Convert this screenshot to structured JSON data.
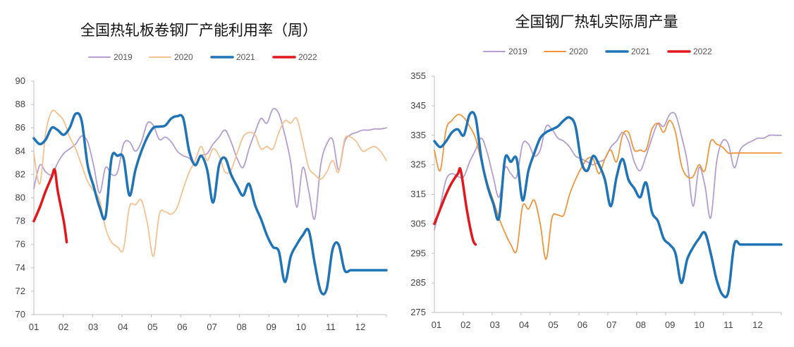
{
  "charts": [
    {
      "title": "全国热轧板卷钢厂产能利用率（周）",
      "legend": [
        {
          "label": "2019",
          "color": "#b39dd1",
          "width": 2
        },
        {
          "label": "2020",
          "color": "#f6c08f",
          "width": 2
        },
        {
          "label": "2021",
          "color": "#1f73b7",
          "width": 3.5
        },
        {
          "label": "2022",
          "color": "#e3161c",
          "width": 3.5
        }
      ],
      "x_ticks": [
        "01",
        "02",
        "03",
        "04",
        "05",
        "06",
        "07",
        "08",
        "09",
        "10",
        "11",
        "12"
      ],
      "y_ticks": [
        "70",
        "72",
        "74",
        "76",
        "78",
        "80",
        "82",
        "84",
        "86",
        "88",
        "90"
      ]
    },
    {
      "title": "全国钢厂热轧实际周产量",
      "legend": [
        {
          "label": "2019",
          "color": "#b39dd1",
          "width": 2
        },
        {
          "label": "2020",
          "color": "#f0953c",
          "width": 2
        },
        {
          "label": "2021",
          "color": "#1f73b7",
          "width": 3.5
        },
        {
          "label": "2022",
          "color": "#e3161c",
          "width": 3.5
        }
      ],
      "x_ticks": [
        "01",
        "02",
        "03",
        "04",
        "05",
        "06",
        "07",
        "08",
        "09",
        "10",
        "11",
        "12"
      ],
      "y_ticks": [
        "275",
        "285",
        "295",
        "305",
        "315",
        "325",
        "335",
        "345",
        "355"
      ]
    }
  ],
  "chart_data": [
    {
      "type": "line",
      "title": "全国热轧板卷钢厂产能利用率（周）",
      "xlabel": "",
      "ylabel": "",
      "xlim": [
        1,
        12.8
      ],
      "ylim": [
        70,
        90
      ],
      "grid": false,
      "legend_position": "top",
      "series": [
        {
          "name": "2019",
          "color": "#b39dd1",
          "x": [
            1.0,
            1.2,
            1.4,
            1.6,
            1.8,
            2.0,
            2.2,
            2.4,
            2.6,
            2.8,
            3.0,
            3.2,
            3.4,
            3.6,
            3.8,
            4.0,
            4.2,
            4.4,
            4.6,
            4.8,
            5.0,
            5.2,
            5.4,
            5.6,
            5.8,
            6.0,
            6.2,
            6.4,
            6.6,
            6.8,
            7.0,
            7.2,
            7.4,
            7.6,
            7.8,
            8.0,
            8.2,
            8.4,
            8.6,
            8.8,
            9.0,
            9.2,
            9.4,
            9.6,
            9.8,
            10.0,
            10.2,
            10.4,
            10.6,
            10.8,
            11.0,
            11.2,
            11.4,
            11.6,
            11.8,
            12.0,
            12.2,
            12.4,
            12.6,
            12.8
          ],
          "values": [
            80.8,
            82.8,
            82.2,
            82.0,
            83.0,
            83.8,
            84.2,
            84.6,
            85.3,
            84.8,
            82.8,
            80.4,
            82.6,
            82.0,
            82.2,
            84.6,
            84.8,
            84.0,
            84.8,
            86.4,
            86.2,
            85.0,
            85.2,
            84.8,
            84.0,
            83.6,
            83.4,
            82.8,
            83.6,
            83.8,
            84.6,
            85.2,
            85.8,
            84.8,
            83.4,
            82.6,
            84.2,
            85.6,
            86.8,
            86.4,
            87.6,
            87.2,
            85.4,
            83.0,
            79.2,
            82.6,
            80.6,
            78.2,
            82.8,
            84.6,
            85.0,
            82.4,
            84.8,
            85.4,
            85.6,
            85.8,
            85.8,
            85.9,
            85.9,
            86.0
          ]
        },
        {
          "name": "2020",
          "color": "#f6c08f",
          "x": [
            1.0,
            1.2,
            1.4,
            1.6,
            1.8,
            2.0,
            2.2,
            2.4,
            2.6,
            2.8,
            3.0,
            3.2,
            3.4,
            3.6,
            3.8,
            4.0,
            4.2,
            4.4,
            4.6,
            4.8,
            5.0,
            5.2,
            5.4,
            5.6,
            5.8,
            6.0,
            6.2,
            6.4,
            6.6,
            6.8,
            7.0,
            7.2,
            7.4,
            7.6,
            7.8,
            8.0,
            8.2,
            8.4,
            8.6,
            8.8,
            9.0,
            9.2,
            9.4,
            9.6,
            9.8,
            10.0,
            10.2,
            10.4,
            10.6,
            10.8,
            11.0,
            11.2,
            11.4,
            11.6,
            11.8,
            12.0,
            12.2,
            12.4,
            12.6,
            12.8
          ],
          "values": [
            83.8,
            81.2,
            85.6,
            87.4,
            87.2,
            86.6,
            85.2,
            84.2,
            82.8,
            81.4,
            80.6,
            79.8,
            77.4,
            76.2,
            75.8,
            75.6,
            79.2,
            79.4,
            79.8,
            77.8,
            75.0,
            78.6,
            78.8,
            78.6,
            79.2,
            80.8,
            82.2,
            83.2,
            84.4,
            83.2,
            84.2,
            83.6,
            82.2,
            82.4,
            83.8,
            85.2,
            85.6,
            85.4,
            84.2,
            84.4,
            84.2,
            85.6,
            86.6,
            86.4,
            86.8,
            84.8,
            82.6,
            82.0,
            81.6,
            82.2,
            83.2,
            82.2,
            85.0,
            85.2,
            84.8,
            84.0,
            84.2,
            84.4,
            84.0,
            83.2
          ]
        },
        {
          "name": "2021",
          "color": "#1f73b7",
          "x": [
            1.0,
            1.2,
            1.4,
            1.6,
            1.8,
            2.0,
            2.2,
            2.4,
            2.6,
            2.8,
            3.0,
            3.2,
            3.4,
            3.6,
            3.8,
            4.0,
            4.2,
            4.4,
            4.6,
            4.8,
            5.0,
            5.2,
            5.4,
            5.6,
            5.8,
            6.0,
            6.2,
            6.4,
            6.6,
            6.8,
            7.0,
            7.2,
            7.4,
            7.6,
            7.8,
            8.0,
            8.2,
            8.4,
            8.6,
            8.8,
            9.0,
            9.2,
            9.4,
            9.6,
            9.8,
            10.0,
            10.2,
            10.4,
            10.6,
            10.8,
            11.0,
            11.2,
            11.4,
            11.6,
            11.8,
            12.0,
            12.2,
            12.4,
            12.6,
            12.8
          ],
          "values": [
            85.1,
            84.6,
            85.0,
            86.0,
            85.8,
            85.4,
            86.0,
            87.2,
            86.6,
            82.8,
            81.0,
            79.2,
            78.4,
            83.4,
            83.6,
            83.4,
            80.2,
            82.4,
            84.0,
            85.2,
            86.0,
            86.1,
            86.2,
            86.8,
            87.0,
            86.8,
            84.0,
            82.8,
            83.6,
            82.4,
            79.6,
            82.8,
            83.4,
            82.0,
            81.0,
            80.2,
            81.2,
            79.4,
            78.2,
            76.8,
            75.8,
            75.4,
            72.8,
            75.0,
            76.0,
            76.8,
            77.2,
            74.4,
            72.0,
            72.2,
            75.6,
            76.0,
            73.8,
            73.8,
            73.8,
            73.8,
            73.8,
            73.8,
            73.8,
            73.8
          ]
        },
        {
          "name": "2022",
          "color": "#e3161c",
          "x": [
            1.0,
            1.2,
            1.4,
            1.6,
            1.7,
            1.8,
            2.0,
            2.1
          ],
          "values": [
            78.0,
            79.2,
            80.6,
            81.8,
            82.4,
            80.6,
            78.0,
            76.2
          ]
        }
      ]
    },
    {
      "type": "line",
      "title": "全国钢厂热轧实际周产量",
      "xlabel": "",
      "ylabel": "",
      "xlim": [
        1,
        12.8
      ],
      "ylim": [
        275,
        355
      ],
      "grid": false,
      "legend_position": "top",
      "series": [
        {
          "name": "2019",
          "color": "#b39dd1",
          "x": [
            1.0,
            1.2,
            1.4,
            1.6,
            1.8,
            2.0,
            2.2,
            2.4,
            2.6,
            2.8,
            3.0,
            3.2,
            3.4,
            3.6,
            3.8,
            4.0,
            4.2,
            4.4,
            4.6,
            4.8,
            5.0,
            5.2,
            5.4,
            5.6,
            5.8,
            6.0,
            6.2,
            6.4,
            6.6,
            6.8,
            7.0,
            7.2,
            7.4,
            7.6,
            7.8,
            8.0,
            8.2,
            8.4,
            8.6,
            8.8,
            9.0,
            9.2,
            9.4,
            9.6,
            9.8,
            10.0,
            10.2,
            10.4,
            10.6,
            10.8,
            11.0,
            11.2,
            11.4,
            11.6,
            11.8,
            12.0,
            12.2,
            12.4,
            12.6,
            12.8
          ],
          "values": [
            303,
            311,
            320,
            322,
            321,
            321,
            326,
            330,
            334,
            329,
            321,
            314,
            324,
            322,
            321,
            332,
            332,
            328,
            330,
            338,
            337,
            334,
            333,
            331,
            328,
            327,
            326,
            325,
            326,
            327,
            331,
            333,
            336,
            333,
            326,
            323,
            328,
            334,
            339,
            338,
            342,
            342,
            335,
            326,
            311,
            324,
            318,
            307,
            326,
            333,
            332,
            324,
            330,
            332,
            333,
            334,
            334,
            335,
            335,
            335
          ]
        },
        {
          "name": "2020",
          "color": "#f0953c",
          "x": [
            1.0,
            1.2,
            1.4,
            1.6,
            1.8,
            2.0,
            2.2,
            2.4,
            2.6,
            2.8,
            3.0,
            3.2,
            3.4,
            3.6,
            3.8,
            4.0,
            4.2,
            4.4,
            4.6,
            4.8,
            5.0,
            5.2,
            5.4,
            5.6,
            5.8,
            6.0,
            6.2,
            6.4,
            6.6,
            6.8,
            7.0,
            7.2,
            7.4,
            7.6,
            7.8,
            8.0,
            8.2,
            8.4,
            8.6,
            8.8,
            9.0,
            9.2,
            9.4,
            9.6,
            9.8,
            10.0,
            10.2,
            10.4,
            10.6,
            10.8,
            11.0,
            11.2,
            11.4,
            11.6,
            11.8,
            12.0,
            12.2,
            12.4,
            12.6,
            12.8
          ],
          "values": [
            330,
            323,
            337,
            340,
            342,
            341,
            338,
            334,
            326,
            319,
            313,
            307,
            302,
            298,
            296,
            311,
            310,
            313,
            305,
            293,
            307,
            308,
            308,
            315,
            320,
            324,
            327,
            327,
            322,
            327,
            330,
            326,
            335,
            336,
            330,
            330,
            330,
            337,
            339,
            336,
            340,
            336,
            325,
            321,
            321,
            325,
            323,
            333,
            332,
            331,
            329,
            329,
            329,
            329,
            329,
            329,
            329,
            329,
            329,
            329
          ]
        },
        {
          "name": "2021",
          "color": "#1f73b7",
          "x": [
            1.0,
            1.2,
            1.4,
            1.6,
            1.8,
            2.0,
            2.2,
            2.4,
            2.6,
            2.8,
            3.0,
            3.2,
            3.4,
            3.6,
            3.8,
            4.0,
            4.2,
            4.4,
            4.6,
            4.8,
            5.0,
            5.2,
            5.4,
            5.6,
            5.8,
            6.0,
            6.2,
            6.4,
            6.6,
            6.8,
            7.0,
            7.2,
            7.4,
            7.6,
            7.8,
            8.0,
            8.2,
            8.4,
            8.6,
            8.8,
            9.0,
            9.2,
            9.4,
            9.6,
            9.8,
            10.0,
            10.2,
            10.4,
            10.6,
            10.8,
            11.0,
            11.2,
            11.4,
            11.6,
            11.8,
            12.0,
            12.2,
            12.4,
            12.6,
            12.8
          ],
          "values": [
            333,
            331,
            333,
            336,
            337,
            335,
            342,
            341,
            327,
            318,
            312,
            307,
            327,
            326,
            327,
            313,
            323,
            329,
            334,
            336,
            337,
            338,
            340,
            341,
            338,
            326,
            323,
            328,
            325,
            320,
            311,
            321,
            327,
            320,
            317,
            314,
            319,
            309,
            306,
            300,
            298,
            295,
            285,
            293,
            297,
            300,
            302,
            295,
            286,
            281,
            282,
            298,
            298,
            298,
            298,
            298,
            298,
            298,
            298,
            298
          ]
        },
        {
          "name": "2022",
          "color": "#e3161c",
          "x": [
            1.0,
            1.2,
            1.4,
            1.6,
            1.8,
            1.9,
            2.1,
            2.3,
            2.4
          ],
          "values": [
            305,
            310,
            315,
            319,
            322,
            323,
            310,
            300,
            298
          ]
        }
      ]
    }
  ]
}
